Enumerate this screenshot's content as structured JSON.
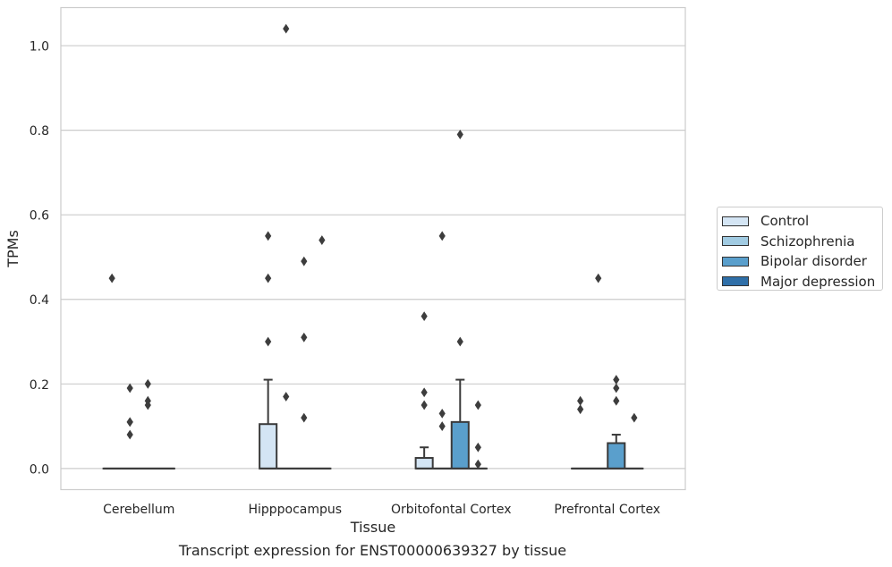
{
  "chart_data": {
    "type": "box",
    "xlabel": "Tissue",
    "ylabel": "TPMs",
    "ylim": [
      -0.05,
      1.09
    ],
    "yticks": [
      "0.0",
      "0.2",
      "0.4",
      "0.6",
      "0.8",
      "1.0"
    ],
    "ytick_values": [
      0.0,
      0.2,
      0.4,
      0.6,
      0.8,
      1.0
    ],
    "grid": "horizontal",
    "legend_position": "right",
    "categories": [
      "Cerebellum",
      "Hipppocampus",
      "Orbitofontal Cortex",
      "Prefrontal Cortex"
    ],
    "series": [
      {
        "name": "Control",
        "color": "#d4e5f4",
        "boxes": [
          {
            "category": "Cerebellum",
            "whisker_low": 0,
            "q1": 0,
            "median": 0,
            "q3": 0,
            "whisker_high": 0,
            "outliers": [
              0.45
            ]
          },
          {
            "category": "Hipppocampus",
            "whisker_low": 0,
            "q1": 0,
            "median": 0,
            "q3": 0.105,
            "whisker_high": 0.21,
            "outliers": [
              0.3,
              0.45,
              0.55
            ]
          },
          {
            "category": "Orbitofontal Cortex",
            "whisker_low": 0,
            "q1": 0,
            "median": 0,
            "q3": 0.025,
            "whisker_high": 0.05,
            "outliers": [
              0.15,
              0.18,
              0.36
            ]
          },
          {
            "category": "Prefrontal Cortex",
            "whisker_low": 0,
            "q1": 0,
            "median": 0,
            "q3": 0,
            "whisker_high": 0,
            "outliers": [
              0.14,
              0.16
            ]
          }
        ]
      },
      {
        "name": "Schizophrenia",
        "color": "#a1cbe2",
        "boxes": [
          {
            "category": "Cerebellum",
            "whisker_low": 0,
            "q1": 0,
            "median": 0,
            "q3": 0,
            "whisker_high": 0,
            "outliers": [
              0.08,
              0.11,
              0.11,
              0.19
            ]
          },
          {
            "category": "Hipppocampus",
            "whisker_low": 0,
            "q1": 0,
            "median": 0,
            "q3": 0,
            "whisker_high": 0,
            "outliers": [
              0.17,
              1.04
            ]
          },
          {
            "category": "Orbitofontal Cortex",
            "whisker_low": 0,
            "q1": 0,
            "median": 0,
            "q3": 0,
            "whisker_high": 0,
            "outliers": [
              0.1,
              0.13,
              0.55
            ]
          },
          {
            "category": "Prefrontal Cortex",
            "whisker_low": 0,
            "q1": 0,
            "median": 0,
            "q3": 0,
            "whisker_high": 0,
            "outliers": [
              0.45
            ]
          }
        ]
      },
      {
        "name": "Bipolar disorder",
        "color": "#5a9fcc",
        "boxes": [
          {
            "category": "Cerebellum",
            "whisker_low": 0,
            "q1": 0,
            "median": 0,
            "q3": 0,
            "whisker_high": 0,
            "outliers": [
              0.15,
              0.16,
              0.2
            ]
          },
          {
            "category": "Hipppocampus",
            "whisker_low": 0,
            "q1": 0,
            "median": 0,
            "q3": 0,
            "whisker_high": 0,
            "outliers": [
              0.12,
              0.31,
              0.49
            ]
          },
          {
            "category": "Orbitofontal Cortex",
            "whisker_low": 0,
            "q1": 0,
            "median": 0,
            "q3": 0.11,
            "whisker_high": 0.21,
            "outliers": [
              0.3,
              0.79
            ]
          },
          {
            "category": "Prefrontal Cortex",
            "whisker_low": 0,
            "q1": 0,
            "median": 0,
            "q3": 0.06,
            "whisker_high": 0.08,
            "outliers": [
              0.16,
              0.19,
              0.21
            ]
          }
        ]
      },
      {
        "name": "Major depression",
        "color": "#2f6fa8",
        "boxes": [
          {
            "category": "Cerebellum",
            "whisker_low": 0,
            "q1": 0,
            "median": 0,
            "q3": 0,
            "whisker_high": 0,
            "outliers": []
          },
          {
            "category": "Hipppocampus",
            "whisker_low": 0,
            "q1": 0,
            "median": 0,
            "q3": 0,
            "whisker_high": 0,
            "outliers": [
              0.54
            ]
          },
          {
            "category": "Orbitofontal Cortex",
            "whisker_low": 0,
            "q1": 0,
            "median": 0,
            "q3": 0,
            "whisker_high": 0,
            "outliers": [
              0.01,
              0.05,
              0.15
            ]
          },
          {
            "category": "Prefrontal Cortex",
            "whisker_low": 0,
            "q1": 0,
            "median": 0,
            "q3": 0,
            "whisker_high": 0,
            "outliers": [
              0.12
            ]
          }
        ]
      }
    ]
  },
  "caption": "Transcript expression for ENST00000639327 by tissue"
}
